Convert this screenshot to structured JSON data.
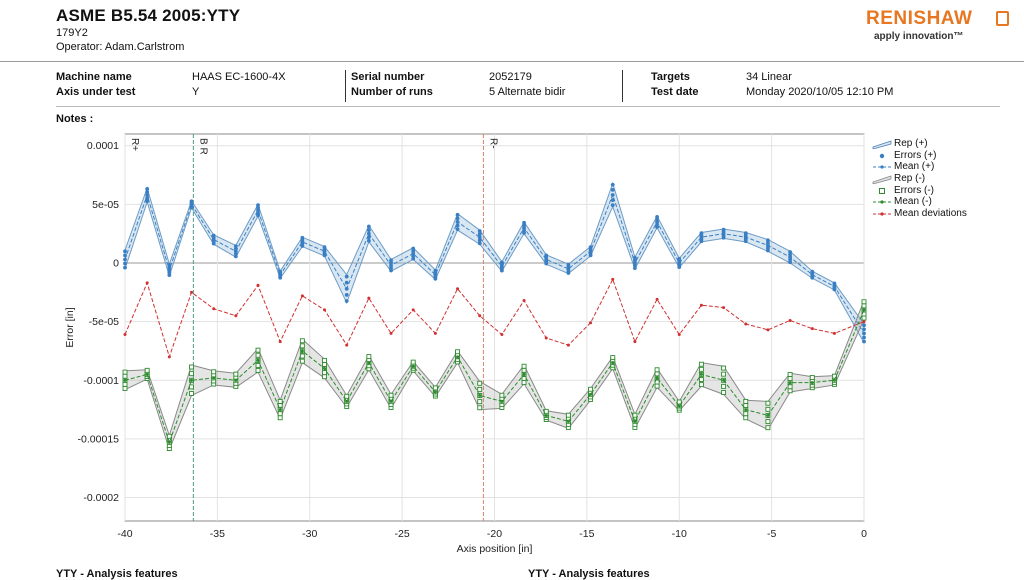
{
  "header": {
    "title": "ASME B5.54 2005:YTY",
    "subtitle": "179Y2",
    "operator": "Operator: Adam.Carlstrom"
  },
  "logo": {
    "name": "RENISHAW",
    "tagline": "apply innovation™",
    "color": "#e87722"
  },
  "info": {
    "machine_name_label": "Machine name",
    "machine_name": "HAAS EC-1600-4X",
    "axis_label": "Axis under test",
    "axis": "Y",
    "serial_label": "Serial number",
    "serial": "2052179",
    "runs_label": "Number of runs",
    "runs": "5 Alternate bidir",
    "targets_label": "Targets",
    "targets": "34 Linear",
    "date_label": "Test date",
    "date": "Monday 2020/10/05 12:10 PM"
  },
  "notes_label": "Notes :",
  "footer": {
    "left": "YTY - Analysis features",
    "right": "YTY - Analysis features"
  },
  "legend": [
    {
      "label": "Rep (+)",
      "icon": "band",
      "color": "#4a86c0"
    },
    {
      "label": "Errors (+)",
      "icon": "dot",
      "color": "#3a7fc4"
    },
    {
      "label": "Mean (+)",
      "icon": "dashline",
      "color": "#3a7fc4"
    },
    {
      "label": "Rep (-)",
      "icon": "band",
      "color": "#8a8a8a"
    },
    {
      "label": "Errors (-)",
      "icon": "square",
      "color": "#2e8b2e"
    },
    {
      "label": "Mean (-)",
      "icon": "dashline",
      "color": "#2e8b2e"
    },
    {
      "label": "Mean deviations",
      "icon": "dashline",
      "color": "#d03030"
    }
  ],
  "chart_data": {
    "type": "line",
    "xlabel": "Axis position [in]",
    "ylabel": "Error [in]",
    "xlim": [
      -40,
      0
    ],
    "ylim": [
      -0.00022,
      0.00011
    ],
    "xticks": [
      -40,
      -35,
      -30,
      -25,
      -20,
      -15,
      -10,
      -5,
      0
    ],
    "yticks": [
      0.0001,
      5e-05,
      0,
      -5e-05,
      -0.0001,
      -0.00015,
      -0.0002
    ],
    "ytick_labels": [
      "0.0001",
      "5e-05",
      "0",
      "-5e-05",
      "-0.0001",
      "-0.00015",
      "-0.0002"
    ],
    "grid": true,
    "legend_position": "right",
    "markers": [
      {
        "x": -40,
        "label": "R+"
      },
      {
        "x": -36.3,
        "label": "B R",
        "color": "#4f9a8a"
      },
      {
        "x": -20.6,
        "label": "R-",
        "color": "#d4876a"
      }
    ],
    "x": [
      -40,
      -38.8,
      -37.6,
      -36.4,
      -35.2,
      -34,
      -32.8,
      -31.6,
      -30.4,
      -29.2,
      -28,
      -26.8,
      -25.6,
      -24.4,
      -23.2,
      -22,
      -20.8,
      -19.6,
      -18.4,
      -17.2,
      -16,
      -14.8,
      -13.6,
      -12.4,
      -11.2,
      -10,
      -8.8,
      -7.6,
      -6.4,
      -5.2,
      -4,
      -2.8,
      -1.6,
      0
    ],
    "series": [
      {
        "name": "Mean (+)",
        "color": "#3a7fc4",
        "values": [
          3e-06,
          5.8e-05,
          -6e-06,
          5e-05,
          2e-05,
          1e-05,
          4.5e-05,
          -1e-05,
          1.8e-05,
          1e-05,
          -2.2e-05,
          2.5e-05,
          -2e-06,
          8e-06,
          -1e-05,
          3.5e-05,
          2.2e-05,
          -3e-06,
          3e-05,
          3e-06,
          -5e-06,
          1e-05,
          5.8e-05,
          0.0,
          3.5e-05,
          0.0,
          2.2e-05,
          2.5e-05,
          2.2e-05,
          1.5e-05,
          5e-06,
          -1e-05,
          -2e-05,
          -6e-05
        ],
        "spread": [
          8e-06,
          6e-06,
          5e-06,
          3e-06,
          4e-06,
          5e-06,
          5e-06,
          3e-06,
          4e-06,
          4e-06,
          1.2e-05,
          7e-06,
          5e-06,
          5e-06,
          4e-06,
          7e-06,
          6e-06,
          4e-06,
          5e-06,
          4e-06,
          4e-06,
          4e-06,
          1e-05,
          5e-06,
          5e-06,
          4e-06,
          4e-06,
          4e-06,
          4e-06,
          5e-06,
          5e-06,
          3e-06,
          3e-06,
          8e-06
        ]
      },
      {
        "name": "Mean (-)",
        "color": "#2e8b2e",
        "values": [
          -0.0001,
          -9.5e-05,
          -0.000153,
          -0.0001,
          -9.8e-05,
          -0.0001,
          -8.3e-05,
          -0.000125,
          -7.5e-05,
          -9e-05,
          -0.000118,
          -8.5e-05,
          -0.000118,
          -8.8e-05,
          -0.00011,
          -8e-05,
          -0.000113,
          -0.000118,
          -9.5e-05,
          -0.00013,
          -0.000135,
          -0.000112,
          -8.5e-05,
          -0.000135,
          -9.8e-05,
          -0.000122,
          -9.5e-05,
          -0.0001,
          -0.000125,
          -0.00013,
          -0.000102,
          -0.000102,
          -0.0001,
          -4e-05
        ],
        "spread": [
          8e-06,
          4e-06,
          6e-06,
          1.3e-05,
          6e-06,
          6e-06,
          1e-05,
          8e-06,
          1e-05,
          8e-06,
          5e-06,
          6e-06,
          6e-06,
          4e-06,
          4e-06,
          5e-06,
          1.2e-05,
          6e-06,
          8e-06,
          4e-06,
          6e-06,
          5e-06,
          5e-06,
          6e-06,
          8e-06,
          4e-06,
          1e-05,
          1.2e-05,
          8e-06,
          1.2e-05,
          8e-06,
          5e-06,
          4e-06,
          8e-06
        ]
      },
      {
        "name": "Mean deviations",
        "color": "#d03030",
        "values": [
          -6.1e-05,
          -1.7e-05,
          -8e-05,
          -2.5e-05,
          -3.9e-05,
          -4.5e-05,
          -1.9e-05,
          -6.7e-05,
          -2.8e-05,
          -4e-05,
          -7e-05,
          -3e-05,
          -6e-05,
          -4e-05,
          -6e-05,
          -2.2e-05,
          -4.5e-05,
          -6.1e-05,
          -3.2e-05,
          -6.4e-05,
          -7e-05,
          -5.1e-05,
          -1.4e-05,
          -6.7e-05,
          -3.1e-05,
          -6.1e-05,
          -3.6e-05,
          -3.8e-05,
          -5.2e-05,
          -5.7e-05,
          -4.9e-05,
          -5.6e-05,
          -6e-05,
          -5e-05
        ]
      }
    ]
  }
}
